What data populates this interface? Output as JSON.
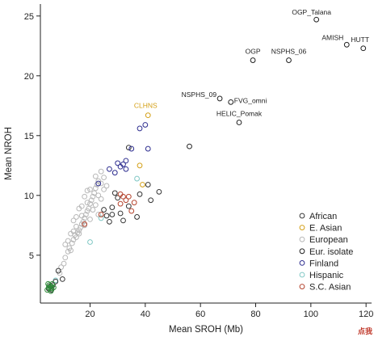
{
  "chart_data": {
    "type": "scatter",
    "xlabel": "Mean SROH (Mb)",
    "ylabel": "Mean NROH",
    "xlim": [
      2,
      122
    ],
    "ylim": [
      1,
      26
    ],
    "xticks": [
      20,
      40,
      60,
      80,
      100,
      120
    ],
    "yticks": [
      5,
      10,
      15,
      20,
      25
    ],
    "grid": false,
    "legend_position": "bottom-right",
    "colors": {
      "African": "#333333",
      "E. Asian": "#d4a017",
      "European": "#b8b8b8",
      "Eur. isolate": "#222222",
      "Finland": "#2d2d8f",
      "Hispanic": "#7fc7c4",
      "S.C. Asian": "#b5452f"
    },
    "series": [
      {
        "name": "African",
        "points": [
          [
            5,
            2.2
          ],
          [
            5.5,
            2.4
          ],
          [
            6,
            2.1
          ],
          [
            6.5,
            2.5
          ],
          [
            7.5,
            2.8
          ],
          [
            8.5,
            3.7
          ],
          [
            10,
            3.0
          ],
          [
            25,
            8.8
          ],
          [
            26,
            8.3
          ],
          [
            27,
            7.8
          ],
          [
            28,
            9.0
          ],
          [
            28,
            8.4
          ],
          [
            29,
            10.2
          ],
          [
            30,
            9.8
          ],
          [
            31,
            8.5
          ],
          [
            32,
            7.9
          ],
          [
            34,
            9.1
          ],
          [
            37,
            8.2
          ],
          [
            38,
            10.1
          ],
          [
            41,
            10.9
          ],
          [
            45,
            10.3
          ],
          [
            42,
            9.6
          ],
          [
            34,
            14.0
          ]
        ]
      },
      {
        "name": "E. Asian",
        "points": [
          [
            41,
            16.7
          ],
          [
            38,
            12.5
          ],
          [
            39,
            10.9
          ]
        ]
      },
      {
        "name": "European",
        "points": [
          [
            9,
            3.5
          ],
          [
            9.5,
            4.0
          ],
          [
            10.5,
            4.3
          ],
          [
            11,
            4.8
          ],
          [
            12,
            5.3
          ],
          [
            12.5,
            5.6
          ],
          [
            13,
            5.4
          ],
          [
            13.5,
            6.0
          ],
          [
            14,
            6.3
          ],
          [
            14.5,
            6.7
          ],
          [
            15,
            6.5
          ],
          [
            15.5,
            6.9
          ],
          [
            16,
            7.1
          ],
          [
            16.5,
            7.3
          ],
          [
            17,
            7.6
          ],
          [
            17.5,
            7.8
          ],
          [
            18,
            8.1
          ],
          [
            18.5,
            8.4
          ],
          [
            19,
            8.7
          ],
          [
            19.5,
            8.9
          ],
          [
            20,
            9.3
          ],
          [
            20.5,
            9.6
          ],
          [
            21,
            9.9
          ],
          [
            21.5,
            10.2
          ],
          [
            22,
            10.6
          ],
          [
            22.5,
            10.9
          ],
          [
            23,
            11.2
          ],
          [
            24,
            11.0
          ],
          [
            25,
            10.5
          ],
          [
            26,
            10.8
          ],
          [
            14,
            7.0
          ],
          [
            15,
            7.4
          ],
          [
            16,
            6.8
          ],
          [
            17,
            8.3
          ],
          [
            18,
            7.5
          ],
          [
            19,
            9.4
          ],
          [
            20,
            8.0
          ],
          [
            21,
            8.8
          ],
          [
            22,
            9.2
          ],
          [
            23,
            8.4
          ],
          [
            24,
            9.7
          ],
          [
            18,
            9.9
          ],
          [
            19,
            10.4
          ],
          [
            16,
            8.9
          ],
          [
            15,
            8.2
          ],
          [
            17,
            9.1
          ],
          [
            20,
            10.5
          ],
          [
            22,
            11.6
          ],
          [
            13,
            6.8
          ],
          [
            14,
            7.9
          ],
          [
            12,
            6.2
          ],
          [
            11,
            5.9
          ],
          [
            24,
            12.0
          ],
          [
            25,
            11.5
          ],
          [
            23,
            10.0
          ]
        ]
      },
      {
        "name": "Eur. isolate",
        "points": [
          [
            56,
            14.1
          ],
          [
            67,
            18.1
          ],
          [
            71,
            17.8
          ],
          [
            74,
            16.1
          ],
          [
            79,
            21.3
          ],
          [
            92,
            21.3
          ],
          [
            102,
            24.7
          ],
          [
            113,
            22.6
          ],
          [
            119,
            22.3
          ]
        ]
      },
      {
        "name": "Finland",
        "points": [
          [
            27,
            12.2
          ],
          [
            29,
            11.9
          ],
          [
            31,
            12.4
          ],
          [
            32,
            12.6
          ],
          [
            33,
            12.9
          ],
          [
            35,
            13.9
          ],
          [
            38,
            15.6
          ],
          [
            40,
            15.9
          ],
          [
            41,
            13.9
          ],
          [
            30,
            12.7
          ],
          [
            33,
            12.2
          ],
          [
            23,
            11.0
          ]
        ]
      },
      {
        "name": "Hispanic",
        "points": [
          [
            7.5,
            2.9
          ],
          [
            20,
            6.1
          ],
          [
            24,
            8.1
          ],
          [
            37,
            11.4
          ]
        ]
      },
      {
        "name": "S.C. Asian",
        "points": [
          [
            18,
            7.6
          ],
          [
            24,
            8.4
          ],
          [
            31,
            9.3
          ],
          [
            33,
            9.6
          ],
          [
            34,
            9.9
          ],
          [
            35,
            8.7
          ],
          [
            32,
            9.9
          ],
          [
            31,
            10.1
          ],
          [
            36,
            9.4
          ]
        ]
      }
    ],
    "green_cluster": {
      "color": "#2f8a3a",
      "points": [
        [
          4.5,
          2.1
        ],
        [
          5,
          2.3
        ],
        [
          5.2,
          2.5
        ],
        [
          5.5,
          2.2
        ],
        [
          6,
          2.4
        ],
        [
          6.3,
          2.6
        ],
        [
          5.8,
          2.0
        ],
        [
          6.8,
          2.3
        ],
        [
          4.8,
          2.6
        ],
        [
          6.1,
          2.2
        ]
      ]
    },
    "annotations": [
      {
        "text": "OGP_Talana",
        "x": 102,
        "y": 24.7,
        "color": "#222222"
      },
      {
        "text": "AMISH",
        "x": 113,
        "y": 22.6,
        "color": "#222222"
      },
      {
        "text": "HUTT",
        "x": 119,
        "y": 22.3,
        "color": "#222222"
      },
      {
        "text": "OGP",
        "x": 79,
        "y": 21.3,
        "color": "#222222"
      },
      {
        "text": "NSPHS_06",
        "x": 92,
        "y": 21.3,
        "color": "#222222"
      },
      {
        "text": "NSPHS_09",
        "x": 67,
        "y": 18.1,
        "color": "#222222"
      },
      {
        "text": "FVG_omni",
        "x": 71,
        "y": 17.8,
        "color": "#222222"
      },
      {
        "text": "CLHNS",
        "x": 41,
        "y": 16.7,
        "color": "#d4a017"
      },
      {
        "text": "HELIC_Pomak",
        "x": 74,
        "y": 16.1,
        "color": "#222222"
      }
    ]
  },
  "corner_tag": "点我"
}
